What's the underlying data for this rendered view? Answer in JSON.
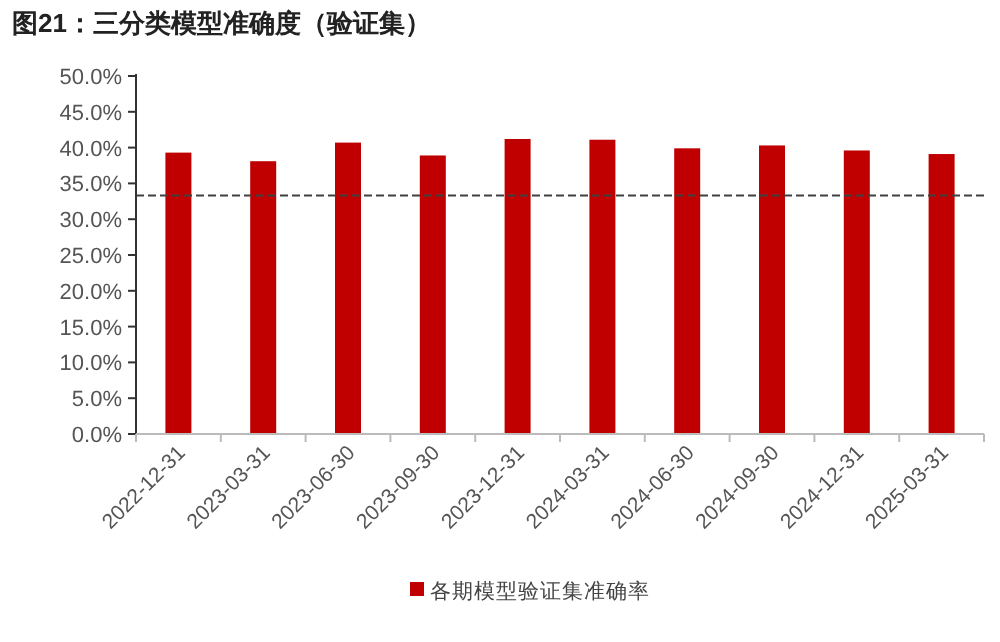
{
  "chart_data": {
    "type": "bar",
    "title": "图21：三分类模型准确度（验证集）",
    "categories": [
      "2022-12-31",
      "2023-03-31",
      "2023-06-30",
      "2023-09-30",
      "2023-12-31",
      "2024-03-31",
      "2024-06-30",
      "2024-09-30",
      "2024-12-31",
      "2025-03-31"
    ],
    "series": [
      {
        "name": "各期模型验证集准确率",
        "color": "#c00000",
        "values": [
          39.3,
          38.1,
          40.7,
          38.9,
          41.2,
          41.1,
          39.9,
          40.3,
          39.6,
          39.1
        ]
      }
    ],
    "ylim": [
      0,
      50
    ],
    "yticks": [
      {
        "value": 0,
        "label": "0.0%"
      },
      {
        "value": 5,
        "label": "5.0%"
      },
      {
        "value": 10,
        "label": "10.0%"
      },
      {
        "value": 15,
        "label": "15.0%"
      },
      {
        "value": 20,
        "label": "20.0%"
      },
      {
        "value": 25,
        "label": "25.0%"
      },
      {
        "value": 30,
        "label": "30.0%"
      },
      {
        "value": 35,
        "label": "35.0%"
      },
      {
        "value": 40,
        "label": "40.0%"
      },
      {
        "value": 45,
        "label": "45.0%"
      },
      {
        "value": 50,
        "label": "50.0%"
      }
    ],
    "ref_lines": [
      {
        "axis": "y",
        "value": 33.3,
        "label": null,
        "color": "#404040",
        "line_style": "dashed"
      }
    ],
    "grid": false,
    "legend": "bottom"
  }
}
